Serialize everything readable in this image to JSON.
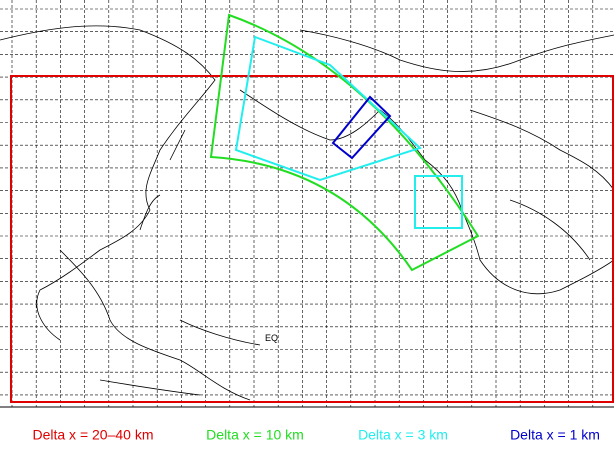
{
  "legend": [
    {
      "label": "Delta x = 20–40 km",
      "color": "#e00000"
    },
    {
      "label": "Delta x = 10 km",
      "color": "#22dd22"
    },
    {
      "label": "Delta x = 3 km",
      "color": "#22eeee"
    },
    {
      "label": "Delta x = 1 km",
      "color": "#0000cc"
    }
  ],
  "labels": {
    "equator": "EQ"
  }
}
